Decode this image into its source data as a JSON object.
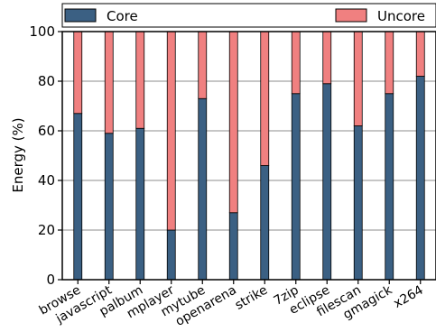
{
  "chart_data": {
    "type": "bar",
    "stacked": true,
    "categories": [
      "browse",
      "javascript",
      "palbum",
      "mplayer",
      "mytube",
      "openarena",
      "strike",
      "7zip",
      "eclipse",
      "filescan",
      "gmagick",
      "x264"
    ],
    "series": [
      {
        "name": "Core",
        "color": "#3b6083",
        "values": [
          67,
          59,
          61,
          20,
          73,
          27,
          46,
          75,
          79,
          62,
          75,
          82
        ]
      },
      {
        "name": "Uncore",
        "color": "#f08080",
        "values": [
          33,
          41,
          39,
          80,
          27,
          73,
          54,
          25,
          21,
          38,
          25,
          18
        ]
      }
    ],
    "ylabel": "Energy (%)",
    "xlabel": "",
    "title": "",
    "ylim": [
      0,
      100
    ],
    "yticks": [
      0,
      20,
      40,
      60,
      80,
      100
    ],
    "grid": "horizontal",
    "legend": "top"
  }
}
